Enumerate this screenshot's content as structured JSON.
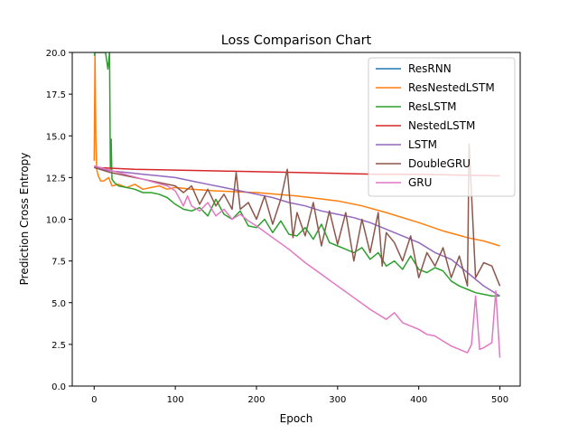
{
  "chart_data": {
    "type": "line",
    "title": "Loss Comparison Chart",
    "xlabel": "Epoch",
    "ylabel": "Prediction Cross Entropy",
    "xlim": [
      -27,
      525
    ],
    "ylim": [
      0,
      20
    ],
    "xticks": [
      0,
      100,
      200,
      300,
      400,
      500
    ],
    "yticks": [
      0.0,
      2.5,
      5.0,
      7.5,
      10.0,
      12.5,
      15.0,
      17.5,
      20.0
    ],
    "ytick_labels": [
      "0.0",
      "2.5",
      "5.0",
      "7.5",
      "10.0",
      "12.5",
      "15.0",
      "17.5",
      "20.0"
    ],
    "legend_position": "upper right",
    "grid": false,
    "series": [
      {
        "name": "ResRNN",
        "color": "#1f77b4",
        "x": [
          0,
          2
        ],
        "y": [
          13.2,
          13.15
        ]
      },
      {
        "name": "ResNestedLSTM",
        "color": "#ff7f0e",
        "x": [
          0,
          1,
          2,
          3,
          5,
          8,
          12,
          18,
          22,
          30,
          40,
          50,
          60,
          70,
          80,
          90,
          100,
          120,
          150,
          200,
          250,
          300,
          330,
          360,
          400,
          430,
          460,
          480,
          500
        ],
        "y": [
          13.5,
          19.9,
          15.0,
          13.0,
          12.6,
          12.3,
          12.3,
          12.5,
          12.0,
          12.1,
          11.9,
          12.1,
          11.8,
          11.9,
          12.0,
          11.8,
          11.9,
          11.8,
          11.7,
          11.6,
          11.4,
          11.1,
          10.8,
          10.4,
          9.8,
          9.3,
          8.9,
          8.7,
          8.4
        ]
      },
      {
        "name": "ResLSTM",
        "color": "#2ca02c",
        "x": [
          0,
          1,
          3,
          6,
          10,
          14,
          17,
          19,
          20,
          21,
          22,
          25,
          30,
          40,
          50,
          60,
          70,
          80,
          90,
          100,
          110,
          120,
          130,
          140,
          150,
          160,
          170,
          180,
          190,
          200,
          210,
          220,
          230,
          240,
          250,
          260,
          270,
          280,
          290,
          300,
          310,
          320,
          330,
          340,
          350,
          360,
          370,
          380,
          390,
          400,
          410,
          420,
          430,
          440,
          450,
          460,
          470,
          480,
          490,
          500
        ],
        "y": [
          19.8,
          20.0,
          20.0,
          20.0,
          20.0,
          20.0,
          19.0,
          20.0,
          13.0,
          14.8,
          12.4,
          12.2,
          12.0,
          11.9,
          11.8,
          11.6,
          11.6,
          11.5,
          11.3,
          10.9,
          10.6,
          10.5,
          10.7,
          10.2,
          11.2,
          10.3,
          10.0,
          10.5,
          9.6,
          9.5,
          10.0,
          9.2,
          9.9,
          9.1,
          9.0,
          9.5,
          8.8,
          9.7,
          8.6,
          8.4,
          8.2,
          8.0,
          8.3,
          7.6,
          8.0,
          7.2,
          7.5,
          7.0,
          7.8,
          7.0,
          6.8,
          7.1,
          6.9,
          6.3,
          6.0,
          5.8,
          5.6,
          5.5,
          5.4,
          5.4
        ]
      },
      {
        "name": "NestedLSTM",
        "color": "#d62728",
        "x": [
          0,
          50,
          100,
          150,
          200,
          250,
          300,
          350,
          400,
          450,
          500
        ],
        "y": [
          13.1,
          13.0,
          12.95,
          12.9,
          12.85,
          12.8,
          12.75,
          12.7,
          12.7,
          12.65,
          12.6
        ]
      },
      {
        "name": "LSTM",
        "color": "#9467bd",
        "x": [
          0,
          20,
          40,
          60,
          80,
          100,
          120,
          140,
          160,
          180,
          200,
          220,
          240,
          260,
          280,
          300,
          320,
          340,
          360,
          380,
          400,
          420,
          440,
          460,
          480,
          500
        ],
        "y": [
          13.1,
          12.9,
          12.8,
          12.7,
          12.6,
          12.5,
          12.3,
          12.1,
          11.9,
          11.7,
          11.5,
          11.3,
          11.0,
          10.8,
          10.5,
          10.3,
          10.1,
          9.8,
          9.4,
          9.0,
          8.6,
          8.0,
          7.6,
          6.8,
          6.0,
          5.4
        ]
      },
      {
        "name": "DoubleGRU",
        "color": "#8c564b",
        "x": [
          0,
          20,
          40,
          60,
          80,
          100,
          110,
          120,
          130,
          140,
          150,
          160,
          170,
          175,
          180,
          190,
          200,
          210,
          220,
          230,
          238,
          245,
          250,
          260,
          270,
          280,
          290,
          300,
          310,
          320,
          330,
          340,
          350,
          355,
          360,
          370,
          380,
          390,
          400,
          410,
          420,
          430,
          440,
          450,
          460,
          462,
          470,
          480,
          490,
          500
        ],
        "y": [
          13.1,
          12.8,
          12.6,
          12.4,
          12.2,
          12.0,
          11.6,
          12.0,
          10.9,
          11.8,
          10.8,
          11.5,
          10.6,
          12.8,
          10.6,
          11.0,
          10.0,
          11.4,
          9.7,
          11.2,
          13.0,
          8.9,
          10.4,
          9.0,
          11.0,
          8.4,
          10.5,
          8.5,
          10.4,
          7.5,
          10.0,
          8.0,
          10.4,
          7.2,
          9.2,
          8.6,
          7.5,
          9.0,
          6.5,
          8.0,
          7.2,
          8.3,
          6.5,
          7.8,
          6.0,
          14.5,
          6.5,
          7.4,
          7.2,
          6.0
        ]
      },
      {
        "name": "GRU",
        "color": "#e377c2",
        "x": [
          0,
          30,
          60,
          90,
          100,
          110,
          115,
          120,
          130,
          140,
          150,
          160,
          170,
          180,
          190,
          200,
          220,
          240,
          260,
          280,
          300,
          320,
          340,
          350,
          360,
          370,
          380,
          390,
          400,
          410,
          420,
          430,
          440,
          450,
          460,
          465,
          470,
          475,
          480,
          490,
          495,
          500
        ],
        "y": [
          13.2,
          12.8,
          12.4,
          12.0,
          11.7,
          10.8,
          11.4,
          10.8,
          10.5,
          11.0,
          10.2,
          10.6,
          10.0,
          10.3,
          9.9,
          9.6,
          8.9,
          8.2,
          7.4,
          6.7,
          6.0,
          5.3,
          4.6,
          4.3,
          4.0,
          4.4,
          3.8,
          3.6,
          3.4,
          3.1,
          3.0,
          2.7,
          2.4,
          2.2,
          2.0,
          2.5,
          5.4,
          2.2,
          2.3,
          2.6,
          5.7,
          1.7
        ]
      }
    ]
  }
}
